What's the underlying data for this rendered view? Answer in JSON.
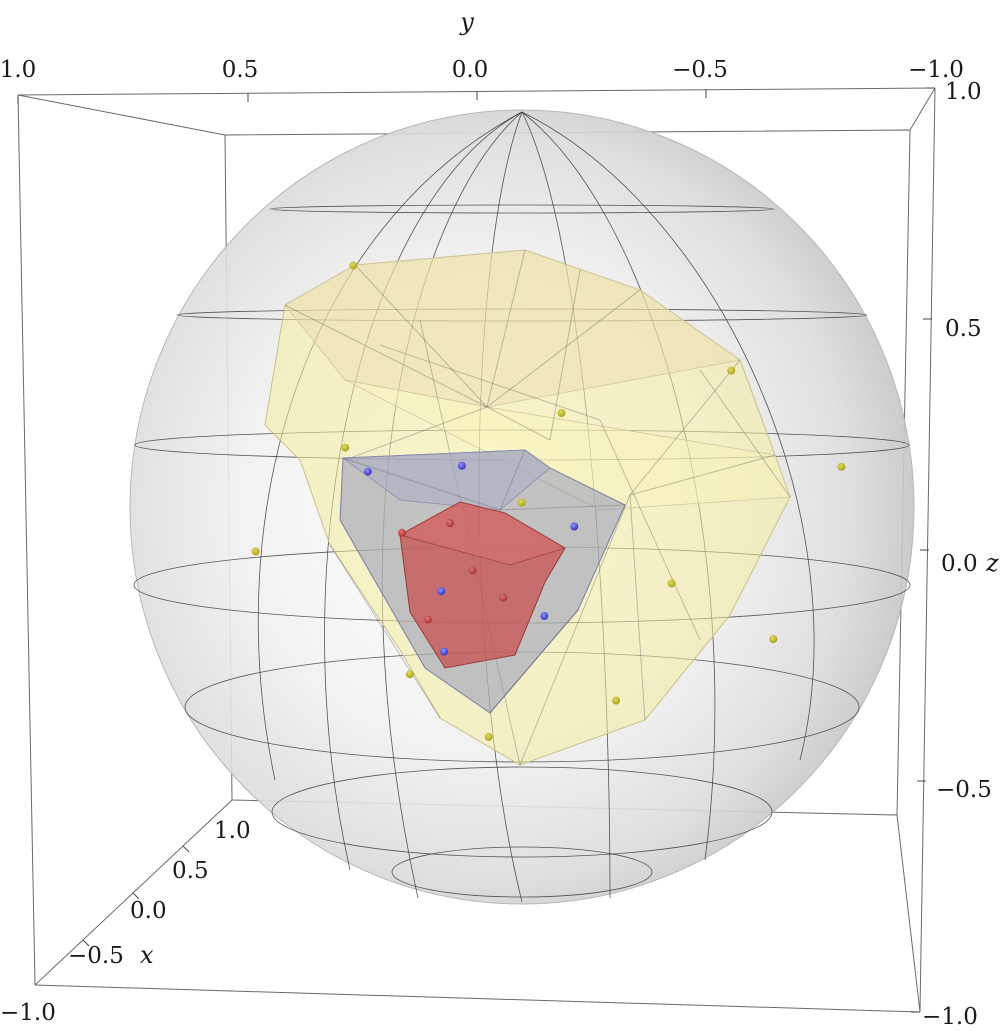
{
  "chart_data": {
    "type": "scatter3d",
    "title": "",
    "axes": {
      "x": {
        "label": "x",
        "range": [
          -1.0,
          1.0
        ],
        "ticks": [
          "1.0",
          "0.5",
          "0.0",
          "−0.5",
          "−1.0"
        ]
      },
      "y": {
        "label": "y",
        "range": [
          -1.0,
          1.0
        ],
        "ticks": [
          "1.0",
          "0.5",
          "0.0",
          "−0.5",
          "−1.0"
        ]
      },
      "z": {
        "label": "z",
        "range": [
          -1.0,
          1.0
        ],
        "ticks": [
          "1.0",
          "0.5",
          "0.0 ",
          "−0.5",
          "−1.0"
        ]
      }
    },
    "sphere": {
      "radius": 1.0,
      "color": "#c8c8c8"
    },
    "series": [
      {
        "color": "#c9c232",
        "hull_color": "#f2eaa0",
        "points": [
          [
            0.05,
            0.43,
            0.63
          ],
          [
            0.42,
            -0.18,
            0.31
          ],
          [
            0.6,
            0.35,
            0.25
          ],
          [
            0.3,
            -0.6,
            0.4
          ],
          [
            0.1,
            -0.85,
            0.12
          ],
          [
            0.4,
            0.62,
            -0.05
          ],
          [
            0.5,
            0.2,
            -0.35
          ],
          [
            0.3,
            -0.3,
            -0.45
          ],
          [
            0.2,
            0.05,
            -0.56
          ],
          [
            0.6,
            -0.5,
            -0.1
          ],
          [
            0.55,
            -0.1,
            0.1
          ],
          [
            0.25,
            -0.7,
            -0.3
          ]
        ]
      },
      {
        "color": "#5050d8",
        "hull_color": "#9aa0c8",
        "points": [
          [
            0.55,
            0.3,
            0.18
          ],
          [
            0.6,
            0.1,
            -0.12
          ],
          [
            0.5,
            -0.15,
            -0.2
          ],
          [
            0.45,
            0.12,
            -0.3
          ],
          [
            0.62,
            -0.25,
            0.05
          ],
          [
            0.58,
            0.05,
            0.2
          ]
        ]
      },
      {
        "color": "#c84848",
        "hull_color": "#d06060",
        "points": [
          [
            0.72,
            0.18,
            0.05
          ],
          [
            0.7,
            0.0,
            -0.05
          ],
          [
            0.68,
            0.12,
            -0.18
          ],
          [
            0.75,
            0.05,
            0.08
          ],
          [
            0.7,
            -0.08,
            -0.12
          ]
        ]
      }
    ]
  }
}
